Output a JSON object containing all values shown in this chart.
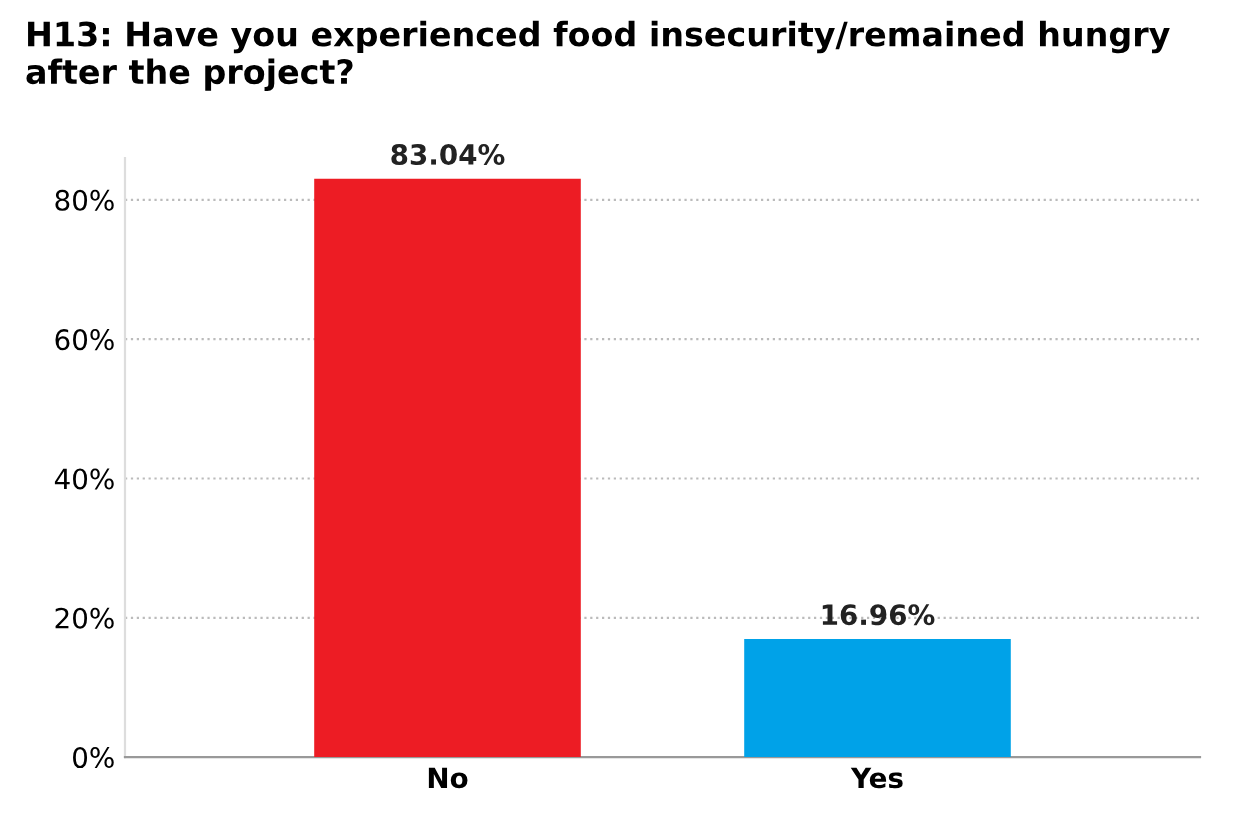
{
  "chart_data": {
    "type": "bar",
    "title": "H13: Have you experienced food insecurity/remained hungry after the project?",
    "categories": [
      "No",
      "Yes"
    ],
    "values": [
      83.04,
      16.96
    ],
    "colors": [
      "#ed1c24",
      "#00a2e8"
    ],
    "value_labels": [
      "83.04%",
      "16.96%"
    ],
    "ylim": [
      0,
      86
    ],
    "yticks": [
      {
        "value": 0,
        "label": "0%"
      },
      {
        "value": 20,
        "label": "20%"
      },
      {
        "value": 40,
        "label": "40%"
      },
      {
        "value": 60,
        "label": "60%"
      },
      {
        "value": 80,
        "label": "80%"
      }
    ],
    "grid": "y"
  }
}
